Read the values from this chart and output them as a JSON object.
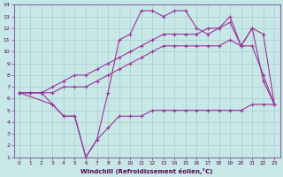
{
  "background_color": "#c8e8e8",
  "line_color": "#993399",
  "grid_color": "#aacccc",
  "xlabel": "Windchill (Refroidissement éolien,°C)",
  "xlim": [
    -0.5,
    23.5
  ],
  "ylim": [
    1,
    14
  ],
  "xticks": [
    0,
    1,
    2,
    3,
    4,
    5,
    6,
    7,
    8,
    9,
    10,
    11,
    12,
    13,
    14,
    15,
    16,
    17,
    18,
    19,
    20,
    21,
    22,
    23
  ],
  "yticks": [
    1,
    2,
    3,
    4,
    5,
    6,
    7,
    8,
    9,
    10,
    11,
    12,
    13,
    14
  ],
  "line_bottom_x": [
    0,
    1,
    2,
    3,
    4,
    5,
    6,
    7,
    8,
    9,
    10,
    11,
    12,
    13,
    14,
    15,
    16,
    17,
    18,
    19,
    20,
    21,
    22,
    23
  ],
  "line_bottom_y": [
    6.5,
    6.5,
    6.5,
    5.5,
    4.5,
    4.5,
    1.0,
    2.5,
    3.5,
    4.5,
    4.5,
    4.5,
    5.0,
    5.0,
    5.0,
    5.0,
    5.0,
    5.0,
    5.0,
    5.0,
    5.0,
    5.5,
    5.5,
    5.5
  ],
  "line_mid1_x": [
    0,
    1,
    2,
    3,
    4,
    5,
    6,
    7,
    8,
    9,
    10,
    11,
    12,
    13,
    14,
    15,
    16,
    17,
    18,
    19,
    20,
    21,
    22,
    23
  ],
  "line_mid1_y": [
    6.5,
    6.5,
    6.5,
    6.5,
    7.0,
    7.0,
    7.0,
    7.5,
    8.0,
    8.5,
    9.0,
    9.5,
    10.0,
    10.5,
    10.5,
    10.5,
    10.5,
    10.5,
    10.5,
    11.0,
    10.5,
    10.5,
    8.0,
    5.5
  ],
  "line_mid2_x": [
    0,
    1,
    2,
    3,
    4,
    5,
    6,
    7,
    8,
    9,
    10,
    11,
    12,
    13,
    14,
    15,
    16,
    17,
    18,
    19,
    20,
    21,
    22,
    23
  ],
  "line_mid2_y": [
    6.5,
    6.5,
    6.5,
    7.0,
    7.5,
    8.0,
    8.0,
    8.5,
    9.0,
    9.5,
    10.0,
    10.5,
    11.0,
    11.5,
    11.5,
    11.5,
    11.5,
    12.0,
    12.0,
    12.5,
    10.5,
    12.0,
    11.5,
    5.5
  ],
  "line_top_x": [
    0,
    3,
    4,
    5,
    6,
    7,
    8,
    9,
    10,
    11,
    12,
    13,
    14,
    15,
    16,
    17,
    18,
    19,
    20,
    21,
    22,
    23
  ],
  "line_top_y": [
    6.5,
    5.5,
    4.5,
    4.5,
    1.0,
    2.5,
    6.5,
    11.0,
    11.5,
    13.5,
    13.5,
    13.0,
    13.5,
    13.5,
    12.0,
    11.5,
    12.0,
    13.0,
    10.5,
    12.0,
    7.5,
    5.5
  ]
}
